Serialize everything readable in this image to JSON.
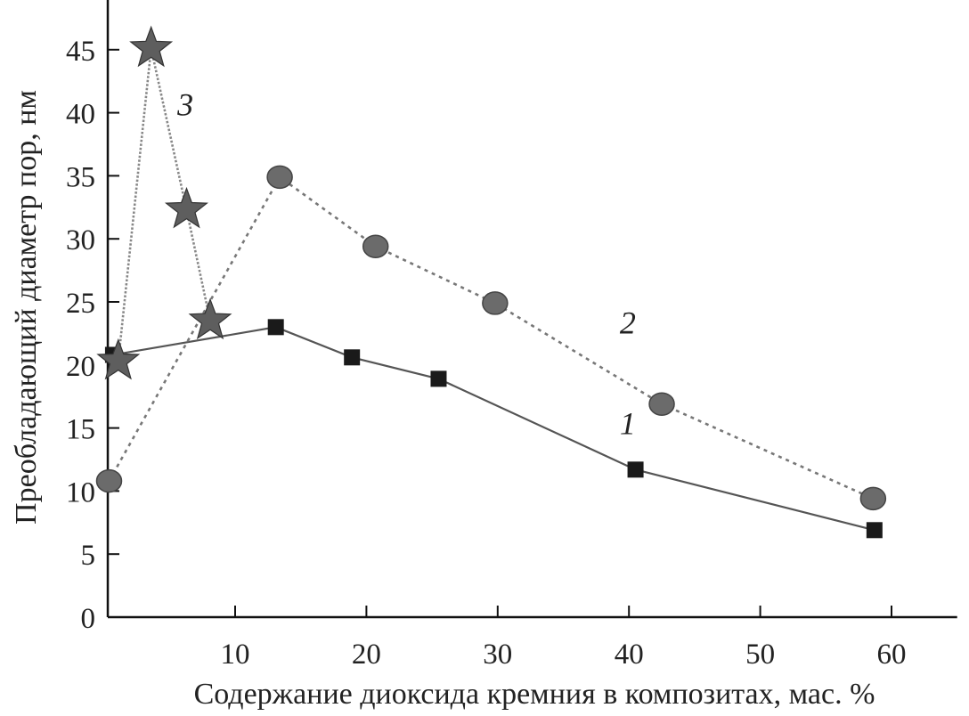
{
  "chart_data": {
    "type": "line",
    "title": "",
    "xlabel": "Содержание диоксида кремния в композитах, мас. %",
    "ylabel": "Преобладающий диаметр пор, нм",
    "xlim": [
      0.3,
      65
    ],
    "ylim": [
      0,
      49
    ],
    "x_ticks": [
      10,
      20,
      30,
      40,
      50,
      60
    ],
    "y_ticks": [
      0,
      5,
      10,
      15,
      20,
      25,
      30,
      35,
      40,
      45
    ],
    "grid": false,
    "legend": "none",
    "series": [
      {
        "name": "1",
        "marker": "square",
        "line": "solid",
        "color": "#1a1a1a",
        "line_color": "#555555",
        "x": [
          0.7,
          13.1,
          18.9,
          25.5,
          40.5,
          58.7
        ],
        "y": [
          20.8,
          23.0,
          20.6,
          18.9,
          11.7,
          6.9
        ]
      },
      {
        "name": "2",
        "marker": "circle",
        "line": "dotted",
        "color": "#6b6b6b",
        "line_color": "#777777",
        "x": [
          0.4,
          13.4,
          20.7,
          29.8,
          42.5,
          58.6
        ],
        "y": [
          10.8,
          34.9,
          29.4,
          24.9,
          16.9,
          9.4
        ]
      },
      {
        "name": "3",
        "marker": "star",
        "line": "dotted",
        "color": "#5e5e5e",
        "line_color": "#888888",
        "x": [
          1.1,
          3.6,
          6.3,
          8.1
        ],
        "y": [
          20.3,
          45.1,
          32.3,
          23.5
        ]
      }
    ],
    "annotations": [
      {
        "text": "1",
        "x": 39.3,
        "y": 14.5
      },
      {
        "text": "2",
        "x": 39.3,
        "y": 22.5
      },
      {
        "text": "3",
        "x": 5.6,
        "y": 39.8
      }
    ]
  }
}
